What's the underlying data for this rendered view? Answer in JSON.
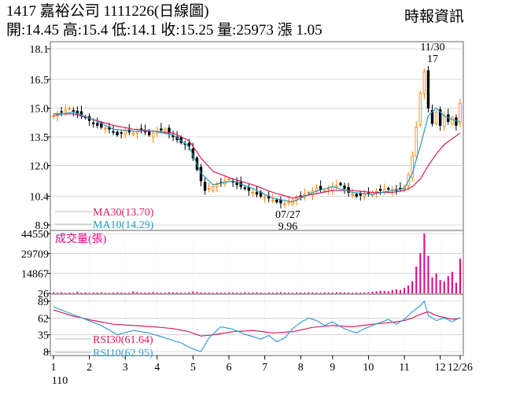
{
  "header": {
    "title": "1417  嘉裕公司 1111226(日線圖)",
    "quote": "開:14.45 高:15.4 低:14.1 收:15.25 量:25973 漲 1.05",
    "source": "時報資訊"
  },
  "colors": {
    "up": "#ff7f00",
    "down": "#000000",
    "ma30": "#d81b60",
    "ma10": "#1f9fc0",
    "volume": "#e6007e",
    "rsi30": "#d81b60",
    "rsi10": "#3a9fd0",
    "grid": "#bbbbbb"
  },
  "chart_data": {
    "type": "candlestick",
    "price": {
      "y_ticks": [
        "18.1",
        "16.5",
        "15.0",
        "13.5",
        "12.0",
        "10.4",
        "8.9"
      ],
      "ylim": [
        8.9,
        18.1
      ],
      "legend": [
        {
          "label": "MA30(13.70)",
          "color": "#d81b60"
        },
        {
          "label": "MA10(14.29)",
          "color": "#1f9fc0"
        }
      ],
      "annotations": {
        "high_date": "11/30",
        "high_value": "17",
        "low_date": "07/27",
        "low_value": "9.96"
      },
      "series": [
        {
          "name": "close",
          "points": [
            [
              0,
              14.6
            ],
            [
              2,
              14.8
            ],
            [
              4,
              15.0
            ],
            [
              6,
              14.7
            ],
            [
              8,
              14.5
            ],
            [
              10,
              14.2
            ],
            [
              12,
              14.0
            ],
            [
              14,
              13.9
            ],
            [
              16,
              13.6
            ],
            [
              18,
              13.8
            ],
            [
              20,
              13.7
            ],
            [
              22,
              13.9
            ],
            [
              24,
              13.6
            ],
            [
              26,
              13.8
            ],
            [
              28,
              13.9
            ],
            [
              30,
              13.5
            ],
            [
              32,
              13.2
            ],
            [
              34,
              13.0
            ],
            [
              35,
              12.4
            ],
            [
              36,
              11.8
            ],
            [
              37,
              11.2
            ],
            [
              38,
              10.7
            ],
            [
              40,
              10.9
            ],
            [
              42,
              11.1
            ],
            [
              44,
              11.3
            ],
            [
              46,
              11.0
            ],
            [
              48,
              10.8
            ],
            [
              50,
              10.6
            ],
            [
              52,
              10.4
            ],
            [
              54,
              10.3
            ],
            [
              56,
              10.1
            ],
            [
              58,
              10.0
            ],
            [
              60,
              10.2
            ],
            [
              62,
              10.4
            ],
            [
              64,
              10.6
            ],
            [
              66,
              10.8
            ],
            [
              68,
              10.7
            ],
            [
              70,
              10.9
            ],
            [
              72,
              11.0
            ],
            [
              74,
              10.6
            ],
            [
              76,
              10.4
            ],
            [
              78,
              10.5
            ],
            [
              80,
              10.6
            ],
            [
              82,
              10.7
            ],
            [
              84,
              10.8
            ],
            [
              86,
              10.7
            ],
            [
              88,
              10.9
            ],
            [
              89,
              11.5
            ],
            [
              90,
              12.5
            ],
            [
              91,
              14.0
            ],
            [
              92,
              15.8
            ],
            [
              93,
              16.9
            ],
            [
              94,
              15.0
            ],
            [
              95,
              14.2
            ],
            [
              96,
              14.8
            ],
            [
              97,
              14.1
            ],
            [
              98,
              14.6
            ],
            [
              99,
              14.3
            ],
            [
              100,
              14.5
            ],
            [
              101,
              14.1
            ],
            [
              102,
              15.25
            ]
          ]
        },
        {
          "name": "MA10",
          "points": [
            [
              0,
              14.6
            ],
            [
              5,
              14.8
            ],
            [
              10,
              14.4
            ],
            [
              15,
              13.9
            ],
            [
              20,
              13.8
            ],
            [
              25,
              13.8
            ],
            [
              30,
              13.6
            ],
            [
              34,
              13.0
            ],
            [
              37,
              11.6
            ],
            [
              40,
              11.0
            ],
            [
              45,
              11.2
            ],
            [
              50,
              10.8
            ],
            [
              55,
              10.3
            ],
            [
              60,
              10.1
            ],
            [
              65,
              10.6
            ],
            [
              70,
              10.9
            ],
            [
              75,
              10.6
            ],
            [
              80,
              10.5
            ],
            [
              85,
              10.7
            ],
            [
              88,
              10.8
            ],
            [
              90,
              11.6
            ],
            [
              92,
              13.0
            ],
            [
              94,
              14.6
            ],
            [
              96,
              15.0
            ],
            [
              98,
              14.6
            ],
            [
              100,
              14.4
            ],
            [
              102,
              14.29
            ]
          ]
        },
        {
          "name": "MA30",
          "points": [
            [
              0,
              14.7
            ],
            [
              5,
              14.7
            ],
            [
              10,
              14.4
            ],
            [
              15,
              14.1
            ],
            [
              20,
              13.9
            ],
            [
              25,
              13.8
            ],
            [
              30,
              13.7
            ],
            [
              34,
              13.3
            ],
            [
              37,
              12.4
            ],
            [
              40,
              11.7
            ],
            [
              45,
              11.3
            ],
            [
              50,
              11.0
            ],
            [
              55,
              10.6
            ],
            [
              60,
              10.3
            ],
            [
              65,
              10.5
            ],
            [
              70,
              10.7
            ],
            [
              75,
              10.7
            ],
            [
              80,
              10.6
            ],
            [
              85,
              10.6
            ],
            [
              88,
              10.7
            ],
            [
              90,
              10.9
            ],
            [
              92,
              11.3
            ],
            [
              94,
              12.0
            ],
            [
              96,
              12.6
            ],
            [
              98,
              13.1
            ],
            [
              100,
              13.4
            ],
            [
              102,
              13.7
            ]
          ]
        }
      ]
    },
    "volume": {
      "title": "成交量(張)",
      "y_ticks": [
        "44550",
        "29709",
        "14867",
        "26"
      ],
      "ylim": [
        26,
        44550
      ],
      "values": [
        800,
        600,
        900,
        500,
        700,
        400,
        1200,
        600,
        800,
        500,
        700,
        600,
        900,
        500,
        400,
        600,
        800,
        700,
        500,
        600,
        1500,
        900,
        700,
        600,
        800,
        1000,
        700,
        500,
        600,
        900,
        800,
        700,
        600,
        500,
        900,
        1400,
        1000,
        700,
        800,
        600,
        500,
        700,
        600,
        500,
        800,
        700,
        600,
        500,
        900,
        600,
        700,
        800,
        600,
        500,
        700,
        600,
        800,
        900,
        700,
        600,
        500,
        800,
        700,
        600,
        900,
        700,
        600,
        500,
        800,
        700,
        600,
        900,
        800,
        700,
        600,
        500,
        700,
        600,
        800,
        900,
        1200,
        1500,
        2000,
        1800,
        1600,
        2500,
        3000,
        2600,
        4000,
        6000,
        9000,
        20000,
        30000,
        44550,
        28000,
        12000,
        15000,
        10000,
        9000,
        13000,
        16000,
        8000,
        25973
      ]
    },
    "rsi": {
      "y_ticks": [
        "89",
        "62",
        "35",
        "8"
      ],
      "ylim": [
        8,
        89
      ],
      "legend": [
        {
          "label": "RSI30(61.64)",
          "color": "#d81b60"
        },
        {
          "label": "RSI10(62.95)",
          "color": "#3a9fd0"
        }
      ],
      "series": [
        {
          "name": "RSI30",
          "points": [
            [
              0,
              75
            ],
            [
              5,
              65
            ],
            [
              10,
              58
            ],
            [
              15,
              52
            ],
            [
              20,
              50
            ],
            [
              25,
              48
            ],
            [
              30,
              45
            ],
            [
              34,
              40
            ],
            [
              37,
              33
            ],
            [
              40,
              35
            ],
            [
              45,
              40
            ],
            [
              50,
              42
            ],
            [
              55,
              38
            ],
            [
              60,
              40
            ],
            [
              65,
              47
            ],
            [
              70,
              50
            ],
            [
              75,
              48
            ],
            [
              80,
              52
            ],
            [
              85,
              55
            ],
            [
              88,
              58
            ],
            [
              90,
              62
            ],
            [
              92,
              68
            ],
            [
              94,
              72
            ],
            [
              96,
              66
            ],
            [
              98,
              63
            ],
            [
              100,
              60
            ],
            [
              102,
              61.64
            ]
          ]
        },
        {
          "name": "RSI10",
          "points": [
            [
              0,
              80
            ],
            [
              4,
              70
            ],
            [
              8,
              60
            ],
            [
              12,
              50
            ],
            [
              16,
              35
            ],
            [
              20,
              42
            ],
            [
              24,
              38
            ],
            [
              28,
              30
            ],
            [
              32,
              22
            ],
            [
              34,
              15
            ],
            [
              36,
              10
            ],
            [
              37,
              8
            ],
            [
              39,
              30
            ],
            [
              42,
              48
            ],
            [
              45,
              44
            ],
            [
              48,
              36
            ],
            [
              50,
              32
            ],
            [
              52,
              28
            ],
            [
              54,
              34
            ],
            [
              56,
              24
            ],
            [
              58,
              30
            ],
            [
              60,
              45
            ],
            [
              62,
              55
            ],
            [
              64,
              62
            ],
            [
              66,
              58
            ],
            [
              68,
              50
            ],
            [
              70,
              56
            ],
            [
              72,
              48
            ],
            [
              74,
              42
            ],
            [
              76,
              38
            ],
            [
              78,
              45
            ],
            [
              80,
              50
            ],
            [
              82,
              55
            ],
            [
              84,
              60
            ],
            [
              86,
              52
            ],
            [
              88,
              60
            ],
            [
              90,
              72
            ],
            [
              92,
              82
            ],
            [
              93,
              89
            ],
            [
              94,
              66
            ],
            [
              96,
              58
            ],
            [
              98,
              62
            ],
            [
              100,
              56
            ],
            [
              102,
              62.95
            ]
          ]
        }
      ]
    },
    "x_axis": {
      "ticks": [
        "1",
        "2",
        "3",
        "4",
        "5",
        "6",
        "7",
        "8",
        "9",
        "10",
        "11",
        "12",
        "12/26"
      ],
      "year_label": "110"
    }
  }
}
